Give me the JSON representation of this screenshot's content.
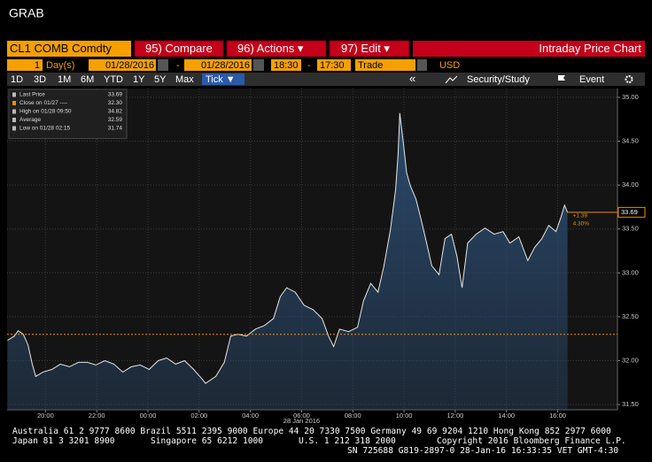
{
  "header": {
    "title": "GRAB"
  },
  "toolbar": {
    "security": "CL1 COMB Comdty",
    "buttons": [
      "95) Compare",
      "96) Actions ▾",
      "97) Edit ▾"
    ],
    "chart_title": "Intraday Price Chart",
    "period": "1",
    "period_unit": "Day(s)",
    "start_date": "01/28/2016",
    "separator": "-",
    "end_date": "01/28/2016",
    "start_time": "18:30",
    "end_time": "17:30",
    "field": "Trade",
    "currency": "USD",
    "ranges": [
      "1D",
      "3D",
      "1M",
      "6M",
      "YTD",
      "1Y",
      "5Y",
      "Max"
    ],
    "tick": "Tick ▼",
    "back": "«",
    "study": "Security/Study",
    "event": "Event"
  },
  "chart_data": {
    "type": "area",
    "color": "#e6e6e6",
    "fill": "#2c4d72",
    "grid": true,
    "x": [
      "18:31",
      "18:47",
      "18:56",
      "19:08",
      "19:19",
      "19:29",
      "19:37",
      "19:54",
      "20:15",
      "20:35",
      "20:56",
      "21:17",
      "21:38",
      "21:58",
      "22:19",
      "22:40",
      "23:01",
      "23:21",
      "23:42",
      "00:03",
      "00:24",
      "00:44",
      "01:05",
      "01:26",
      "01:47",
      "02:07",
      "02:15",
      "02:39",
      "02:59",
      "03:14",
      "03:31",
      "03:51",
      "04:12",
      "04:33",
      "04:54",
      "05:10",
      "05:25",
      "05:45",
      "06:06",
      "06:27",
      "06:48",
      "07:03",
      "07:15",
      "07:29",
      "07:50",
      "08:11",
      "08:25",
      "08:42",
      "08:59",
      "09:13",
      "09:28",
      "09:40",
      "09:46",
      "09:50",
      "09:58",
      "10:06",
      "10:15",
      "10:28",
      "10:41",
      "10:53",
      "11:05",
      "11:22",
      "11:36",
      "11:51",
      "12:04",
      "12:16",
      "12:29",
      "12:49",
      "13:10",
      "13:31",
      "13:52",
      "14:08",
      "14:29",
      "14:50",
      "15:06",
      "15:23",
      "15:39",
      "15:56",
      "16:08",
      "16:16",
      "16:23"
    ],
    "values": [
      32.23,
      32.28,
      32.34,
      32.3,
      32.18,
      31.96,
      31.82,
      31.87,
      31.9,
      31.96,
      31.93,
      31.98,
      31.98,
      31.95,
      32.0,
      31.96,
      31.87,
      31.93,
      31.95,
      31.9,
      32.0,
      32.03,
      31.96,
      32.0,
      31.9,
      31.79,
      31.74,
      31.82,
      31.98,
      32.28,
      32.3,
      32.28,
      32.36,
      32.4,
      32.48,
      32.73,
      32.83,
      32.78,
      32.63,
      32.58,
      32.48,
      32.28,
      32.16,
      32.36,
      32.33,
      32.38,
      32.68,
      32.88,
      32.78,
      33.08,
      33.49,
      33.94,
      34.34,
      34.82,
      34.5,
      34.14,
      33.99,
      33.84,
      33.59,
      33.34,
      33.08,
      32.98,
      33.39,
      33.44,
      33.19,
      32.83,
      33.34,
      33.44,
      33.51,
      33.44,
      33.47,
      33.34,
      33.41,
      33.14,
      33.29,
      33.39,
      33.54,
      33.47,
      33.64,
      33.77,
      33.69
    ],
    "xlim": [
      "18:30",
      "18:20"
    ],
    "xticks": [
      "20:00",
      "22:00",
      "00:00",
      "02:00",
      "04:00",
      "06:00",
      "08:00",
      "10:00",
      "12:00",
      "14:00",
      "16:00"
    ],
    "date_label": "28 Jan 2016",
    "ylim": [
      31.44,
      35.1
    ],
    "yticks": [
      {
        "value": 31.5,
        "label": "31.50"
      },
      {
        "value": 32,
        "label": "32.00"
      },
      {
        "value": 32.5,
        "label": "32.50"
      },
      {
        "value": 33,
        "label": "33.00"
      },
      {
        "value": 33.5,
        "label": "33.50"
      },
      {
        "value": 34,
        "label": "34.00"
      },
      {
        "value": 34.5,
        "label": "34.50"
      },
      {
        "value": 35,
        "label": "35.00"
      }
    ],
    "close_line": {
      "value": 32.3,
      "color": "#f08c00"
    },
    "last_price": {
      "value": 33.69,
      "label": "33.69",
      "color": "#f08c00"
    },
    "change_labels": [
      "+1.39",
      "4.30%"
    ],
    "legend": [
      {
        "label": "Last Price",
        "value": "33.69"
      },
      {
        "label": "Close on 01/27 ----",
        "value": "32.30"
      },
      {
        "label": "High on 01/28 09:50",
        "value": "34.82"
      },
      {
        "label": "Average",
        "value": "32.59"
      },
      {
        "label": "Low on 01/28 02:15",
        "value": "31.74"
      }
    ]
  },
  "footer": {
    "line1": "Australia 61 2 9777 8600 Brazil 5511 2395 9000 Europe 44 20 7330 7500 Germany 49 69 9204 1210 Hong Kong 852 2977 6000",
    "line2": [
      "Japan 81 3 3201 8900",
      "Singapore 65 6212 1000",
      "U.S. 1 212 318 2000",
      "Copyright 2016 Bloomberg Finance L.P."
    ],
    "line3": "SN 725688 G819-2897-0 28-Jan-16 16:33:35 VET  GMT-4:30"
  }
}
